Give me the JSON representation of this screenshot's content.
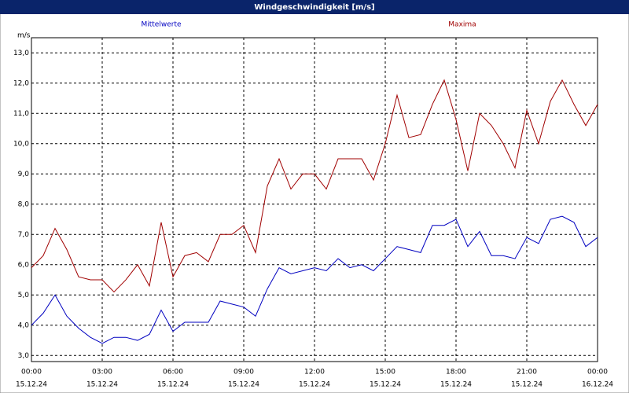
{
  "chart_data": {
    "type": "line",
    "title": "Windgeschwindigkeit [m/s]",
    "y_unit": "m/s",
    "x": [
      0,
      0.5,
      1,
      1.5,
      2,
      2.5,
      3,
      3.5,
      4,
      4.5,
      5,
      5.5,
      6,
      6.5,
      7,
      7.5,
      8,
      8.5,
      9,
      9.5,
      10,
      10.5,
      11,
      11.5,
      12,
      12.5,
      13,
      13.5,
      14,
      14.5,
      15,
      15.5,
      16,
      16.5,
      17,
      17.5,
      18,
      18.5,
      19,
      19.5,
      20,
      20.5,
      21,
      21.5,
      22,
      22.5,
      23,
      23.5,
      24
    ],
    "series": [
      {
        "name": "Mittelwerte",
        "color": "#0000c0",
        "values": [
          4.0,
          4.4,
          5.0,
          4.3,
          3.9,
          3.6,
          3.4,
          3.6,
          3.6,
          3.5,
          3.7,
          4.5,
          3.8,
          4.1,
          4.1,
          4.1,
          4.8,
          4.7,
          4.6,
          4.3,
          5.2,
          5.9,
          5.7,
          5.8,
          5.9,
          5.8,
          6.2,
          5.9,
          6.0,
          5.8,
          6.2,
          6.6,
          6.5,
          6.4,
          7.3,
          7.3,
          7.5,
          6.6,
          7.1,
          6.3,
          6.3,
          6.2,
          6.9,
          6.7,
          7.5,
          7.6,
          7.4,
          6.6,
          6.9
        ]
      },
      {
        "name": "Maxima",
        "color": "#a00000",
        "values": [
          5.9,
          6.3,
          7.2,
          6.5,
          5.6,
          5.5,
          5.5,
          5.1,
          5.5,
          6.0,
          5.3,
          7.4,
          5.6,
          6.3,
          6.4,
          6.1,
          7.0,
          7.0,
          7.3,
          6.4,
          8.6,
          9.5,
          8.5,
          9.0,
          9.0,
          8.5,
          9.5,
          9.5,
          9.5,
          8.8,
          10.0,
          11.6,
          10.2,
          10.3,
          11.3,
          12.1,
          10.8,
          9.1,
          11.0,
          10.6,
          10.0,
          9.2,
          11.1,
          10.0,
          11.4,
          12.1,
          11.3,
          10.6,
          11.3
        ]
      }
    ],
    "xlim": [
      0,
      24
    ],
    "xticks": [
      {
        "value": 0,
        "label": "00:00",
        "sublabel": "15.12.24"
      },
      {
        "value": 3,
        "label": "03:00",
        "sublabel": "15.12.24"
      },
      {
        "value": 6,
        "label": "06:00",
        "sublabel": "15.12.24"
      },
      {
        "value": 9,
        "label": "09:00",
        "sublabel": "15.12.24"
      },
      {
        "value": 12,
        "label": "12:00",
        "sublabel": "15.12.24"
      },
      {
        "value": 15,
        "label": "15:00",
        "sublabel": "15.12.24"
      },
      {
        "value": 18,
        "label": "18:00",
        "sublabel": "15.12.24"
      },
      {
        "value": 21,
        "label": "21:00",
        "sublabel": "15.12.24"
      },
      {
        "value": 24,
        "label": "00:00",
        "sublabel": "16.12.24"
      }
    ],
    "ylim": [
      2.8,
      13.5
    ],
    "yticks": [
      {
        "value": 3,
        "label": "3,0"
      },
      {
        "value": 4,
        "label": "4,0"
      },
      {
        "value": 5,
        "label": "5,0"
      },
      {
        "value": 6,
        "label": "6,0"
      },
      {
        "value": 7,
        "label": "7,0"
      },
      {
        "value": 8,
        "label": "8,0"
      },
      {
        "value": 9,
        "label": "9,0"
      },
      {
        "value": 10,
        "label": "10,0"
      },
      {
        "value": 11,
        "label": "11,0"
      },
      {
        "value": 12,
        "label": "12,0"
      },
      {
        "value": 13,
        "label": "13,0"
      }
    ],
    "grid": true
  }
}
